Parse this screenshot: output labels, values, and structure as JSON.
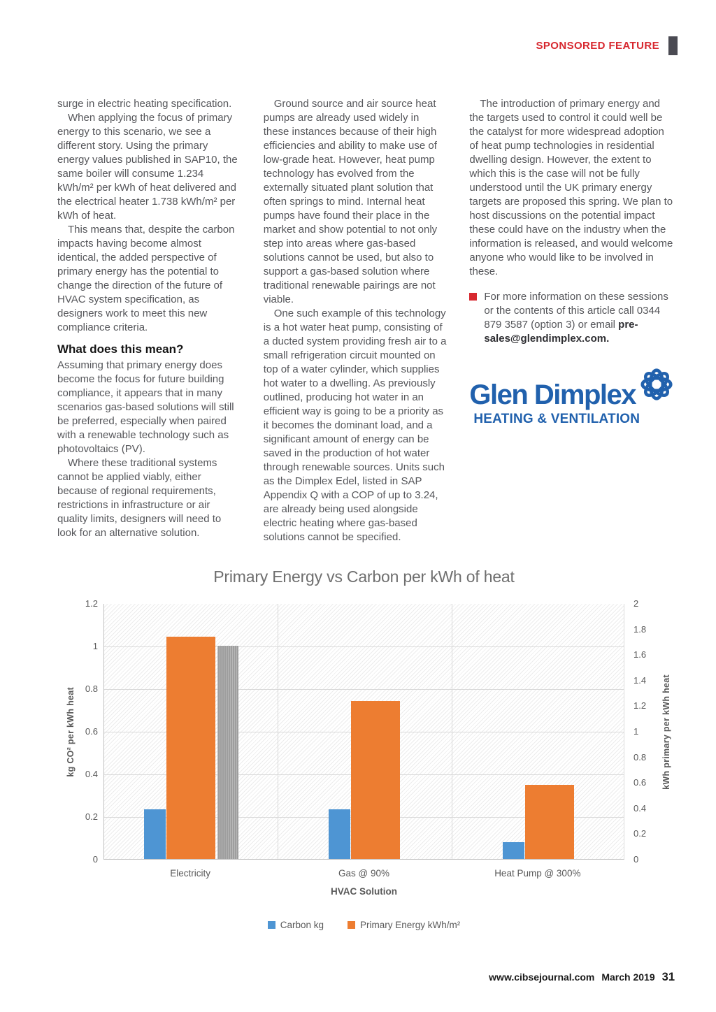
{
  "header": {
    "label": "SPONSORED FEATURE"
  },
  "article": {
    "col1": {
      "p1": "surge in electric heating specification.",
      "p2": "When applying the focus of primary energy to this scenario, we see a different story. Using the primary energy values published in SAP10, the same boiler will consume 1.234 kWh/m² per kWh of heat delivered and the electrical heater 1.738 kWh/m² per kWh of heat.",
      "p3": "This means that, despite the carbon impacts having become almost identical, the added perspective of primary energy has the potential to change the direction of the future of HVAC system specification, as designers work to meet this new compliance criteria.",
      "heading": "What does this mean?",
      "p4": "Assuming that primary energy does become the focus for future building compliance, it appears that in many scenarios gas-based solutions will still be preferred, especially when paired with a renewable technology such as photovoltaics (PV).",
      "p5": "Where these traditional systems cannot be applied viably, either because of regional requirements, restrictions in infrastructure or air quality limits, designers will need to look for an alternative solution."
    },
    "col2": {
      "p1": "Ground source and air source heat pumps are already used widely in these instances because of their high efficiencies and ability to make use of low-grade heat. However, heat pump technology has evolved from the externally situated plant solution that often springs to mind. Internal heat pumps have found their place in the market and show potential to not only step into areas where gas-based solutions cannot be used, but also to support a gas-based solution where traditional renewable pairings are not viable.",
      "p2": "One such example of this technology is a hot water heat pump, consisting of a ducted system providing fresh air to a small refrigeration circuit mounted on top of a water cylinder, which supplies hot water to a dwelling. As previously outlined, producing hot water in an efficient way is going to be a priority as it becomes the dominant load, and a significant amount of energy can be saved in the production of hot water through renewable sources. Units such as the Dimplex Edel, listed in SAP Appendix Q with a COP of up to 3.24, are already being used alongside electric heating where gas-based solutions cannot be specified."
    },
    "col3": {
      "p1": "The introduction of primary energy and the targets used to control it could well be the catalyst for more widespread adoption of heat pump technologies in residential dwelling design. However, the extent to which this is the case will not be fully understood until the UK primary energy targets are proposed this spring. We plan to host discussions on the potential impact these could have on the industry when the information is released, and would welcome anyone who would like to be involved in these.",
      "bullet_text": "For more information on these sessions or the contents of this article call 0344 879 3587 (option 3) or email",
      "bullet_email": "pre-sales@glendimplex.com."
    }
  },
  "logo": {
    "name": "Glen Dimplex",
    "tagline": "HEATING & VENTILATION",
    "brand_color": "#2161AD"
  },
  "chart_data": {
    "type": "bar",
    "title": "Primary Energy vs Carbon per kWh of heat",
    "categories": [
      "Electricity",
      "Gas @ 90%",
      "Heat Pump @ 300%"
    ],
    "series": [
      {
        "name": "Carbon kg",
        "axis": "left",
        "color": "#4E95D3",
        "values": [
          0.233,
          0.233,
          0.078
        ]
      },
      {
        "name": "Primary Energy kWh/m²",
        "axis": "right",
        "color": "#ED7D31",
        "values": [
          1.738,
          1.234,
          0.579
        ]
      },
      {
        "name": "unlabeled gray bar",
        "axis": "left",
        "color": "#A6A6A6",
        "values": [
          1.0,
          null,
          null
        ]
      }
    ],
    "xlabel": "HVAC Solution",
    "ylabel_left": "kg CO² per kWh heat",
    "ylabel_right": "kWh primary per kWh heat",
    "ylim_left": [
      0,
      1.2
    ],
    "ylim_right": [
      0,
      2
    ],
    "yticks_left": [
      "1.2",
      "1",
      "0.8",
      "0.6",
      "0.4",
      "0.2",
      "0"
    ],
    "yticks_right": [
      "2",
      "1.8",
      "1.6",
      "1.4",
      "1.2",
      "1",
      "0.8",
      "0.6",
      "0.4",
      "0.2",
      "0"
    ],
    "legend": [
      {
        "label": "Carbon kg",
        "color": "#4E95D3"
      },
      {
        "label": "Primary Energy kWh/m²",
        "color": "#ED7D31"
      }
    ],
    "grid": true,
    "plot_background": "diagonal-hatch",
    "legend_position": "bottom"
  },
  "footer": {
    "site": "www.cibsejournal.com",
    "date": "March 2019",
    "page": "31"
  },
  "colors": {
    "accent_red": "#D7282F",
    "header_bar": "#4A4A52",
    "body_text": "#55565A"
  }
}
